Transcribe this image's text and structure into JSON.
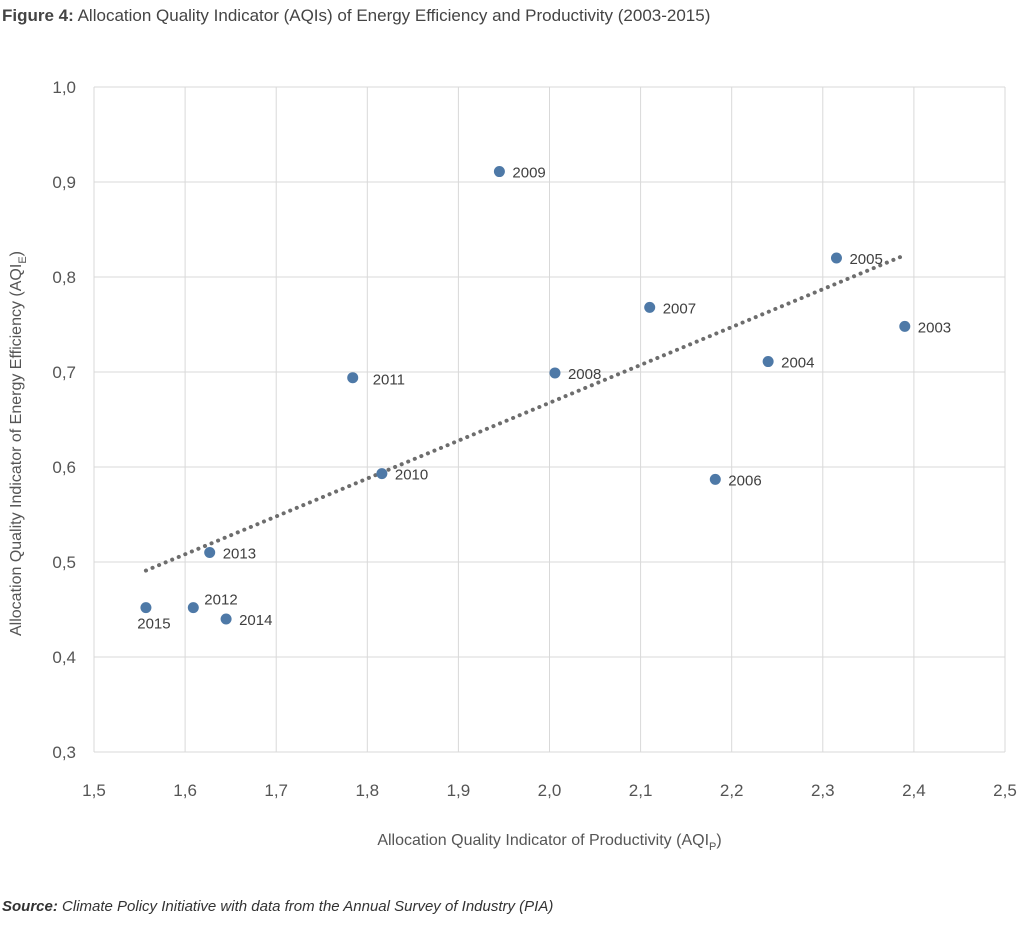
{
  "figure": {
    "label": "Figure 4:",
    "title": "Allocation Quality Indicator (AQIs) of Energy Efficiency and Productivity (2003-2015)"
  },
  "source": {
    "label": "Source:",
    "text": "Climate Policy Initiative with data from the Annual Survey of Industry (PIA)"
  },
  "chart_data": {
    "type": "scatter",
    "xlabel": "Allocation Quality Indicator of Productivity (AQI",
    "xlabel_sub": "P",
    "xlabel_end": ")",
    "ylabel": "Allocation Quality Indicator of Energy Efficiency (AQI",
    "ylabel_sub": "E",
    "ylabel_end": ")",
    "xlim": [
      1.5,
      2.5
    ],
    "ylim": [
      0.3,
      1.0
    ],
    "xticks": [
      "1,5",
      "1,6",
      "1,7",
      "1,8",
      "1,9",
      "2,0",
      "2,1",
      "2,2",
      "2,3",
      "2,4",
      "2,5"
    ],
    "yticks": [
      "0,3",
      "0,4",
      "0,5",
      "0,6",
      "0,7",
      "0,8",
      "0,9",
      "1,0"
    ],
    "grid": true,
    "marker_color": "#4e79a7",
    "trendline_color": "#6d6d6d",
    "trendline": {
      "style": "dotted",
      "x": [
        1.557,
        2.39
      ],
      "y": [
        0.491,
        0.823
      ]
    },
    "points": [
      {
        "label": "2003",
        "x": 2.39,
        "y": 0.748
      },
      {
        "label": "2004",
        "x": 2.24,
        "y": 0.711
      },
      {
        "label": "2005",
        "x": 2.315,
        "y": 0.82
      },
      {
        "label": "2006",
        "x": 2.182,
        "y": 0.587
      },
      {
        "label": "2007",
        "x": 2.11,
        "y": 0.768
      },
      {
        "label": "2008",
        "x": 2.006,
        "y": 0.699
      },
      {
        "label": "2009",
        "x": 1.945,
        "y": 0.911
      },
      {
        "label": "2010",
        "x": 1.816,
        "y": 0.593
      },
      {
        "label": "2011",
        "x": 1.784,
        "y": 0.694
      },
      {
        "label": "2012",
        "x": 1.609,
        "y": 0.452
      },
      {
        "label": "2013",
        "x": 1.627,
        "y": 0.51
      },
      {
        "label": "2014",
        "x": 1.645,
        "y": 0.44
      },
      {
        "label": "2015",
        "x": 1.557,
        "y": 0.452
      }
    ]
  }
}
